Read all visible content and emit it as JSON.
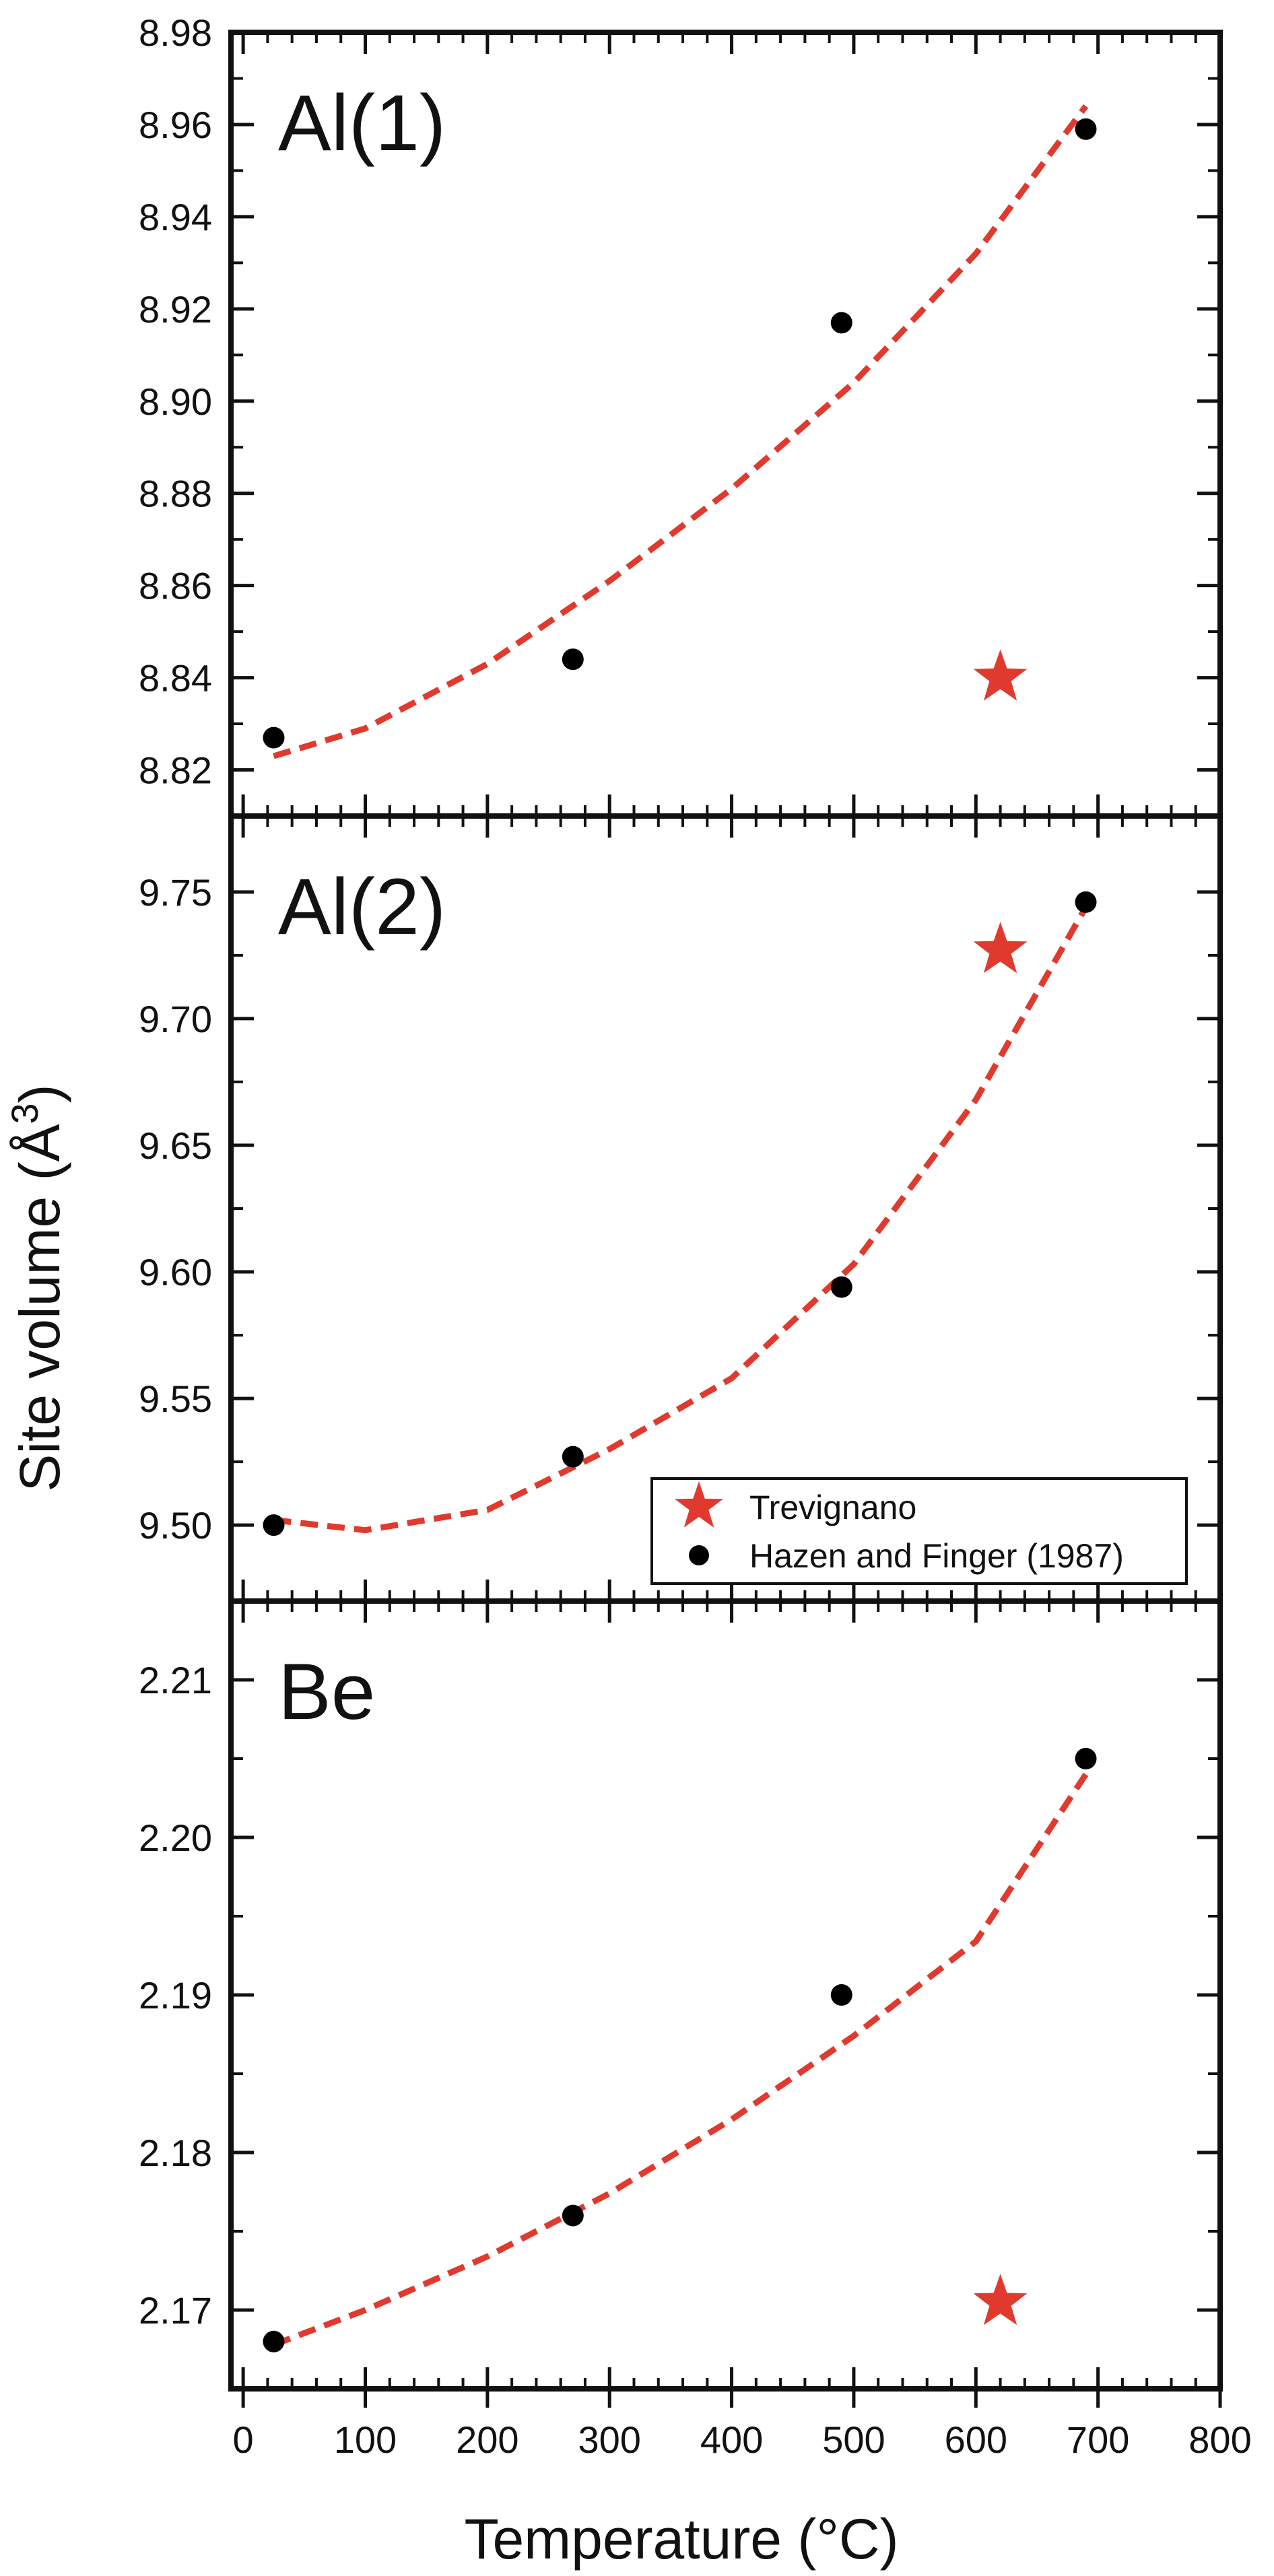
{
  "chart_data": {
    "type": "scatter",
    "xlabel": "Temperature (°C)",
    "ylabel_main": "Site volume (Å",
    "ylabel_sup": "3",
    "ylabel_close": ")",
    "xlim": [
      -10,
      800
    ],
    "xticks": [
      0,
      100,
      200,
      300,
      400,
      500,
      600,
      700,
      800
    ],
    "legend": {
      "placement": "lower-right of middle panel",
      "entries": [
        {
          "label": "Trevignano",
          "marker": "star",
          "color": "#e03a2f"
        },
        {
          "label": "Hazen and Finger (1987)",
          "marker": "circle",
          "color": "#000000"
        }
      ]
    },
    "colors": {
      "fit": "#e03a2f",
      "star": "#e03a2f",
      "dots": "#000000"
    },
    "panels": [
      {
        "label": "Al(1)",
        "ylim": [
          8.81,
          8.98
        ],
        "yticks": [
          8.82,
          8.84,
          8.86,
          8.88,
          8.9,
          8.92,
          8.94,
          8.96,
          8.98
        ],
        "ytick_labels": [
          "8.82",
          "8.84",
          "8.86",
          "8.88",
          "8.90",
          "8.92",
          "8.94",
          "8.96",
          "8.98"
        ],
        "hazen": {
          "x": [
            25,
            270,
            490,
            690
          ],
          "y": [
            8.827,
            8.844,
            8.917,
            8.959
          ]
        },
        "trevignano": {
          "x": [
            620
          ],
          "y": [
            8.84
          ]
        },
        "fit": {
          "x": [
            25,
            100,
            200,
            300,
            400,
            500,
            600,
            690
          ],
          "y": [
            8.823,
            8.829,
            8.843,
            8.861,
            8.881,
            8.904,
            8.932,
            8.964
          ]
        }
      },
      {
        "label": "Al(2)",
        "ylim": [
          9.47,
          9.78
        ],
        "yticks": [
          9.5,
          9.55,
          9.6,
          9.65,
          9.7,
          9.75
        ],
        "ytick_labels": [
          "9.50",
          "9.55",
          "9.60",
          "9.65",
          "9.70",
          "9.75"
        ],
        "hazen": {
          "x": [
            25,
            270,
            490,
            690
          ],
          "y": [
            9.5,
            9.527,
            9.594,
            9.746
          ]
        },
        "trevignano": {
          "x": [
            620
          ],
          "y": [
            9.727
          ]
        },
        "fit": {
          "x": [
            25,
            100,
            200,
            300,
            400,
            500,
            600,
            690
          ],
          "y": [
            9.502,
            9.498,
            9.506,
            9.53,
            9.558,
            9.603,
            9.668,
            9.744
          ]
        }
      },
      {
        "label": "Be",
        "ylim": [
          2.165,
          2.215
        ],
        "yticks": [
          2.17,
          2.18,
          2.19,
          2.2,
          2.21
        ],
        "ytick_labels": [
          "2.17",
          "2.18",
          "2.19",
          "2.20",
          "2.21"
        ],
        "hazen": {
          "x": [
            25,
            270,
            490,
            690
          ],
          "y": [
            2.168,
            2.176,
            2.19,
            2.205
          ]
        },
        "trevignano": {
          "x": [
            620
          ],
          "y": [
            2.1705
          ]
        },
        "fit": {
          "x": [
            25,
            100,
            200,
            300,
            400,
            500,
            600,
            690
          ],
          "y": [
            2.1678,
            2.17,
            2.1734,
            2.1774,
            2.1821,
            2.1874,
            2.1934,
            2.204
          ]
        }
      }
    ]
  }
}
